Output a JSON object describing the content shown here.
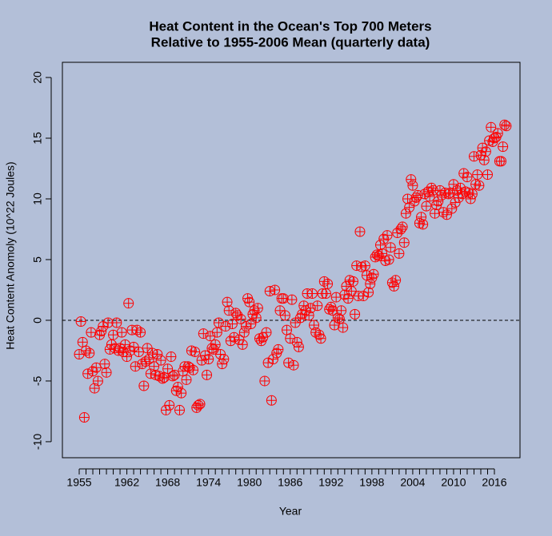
{
  "chart_data": {
    "type": "scatter",
    "title": "Heat Content in the Ocean's Top 700 Meters",
    "subtitle": "Relative to 1955-2006 Mean (quarterly data)",
    "x_label": "Year",
    "y_label": "Heat Content Anomoly (10^22 Joules)",
    "xlim": [
      1952.53,
      2019.76
    ],
    "ylim": [
      -11.32,
      21.25
    ],
    "xticks": [
      1955,
      1962,
      1968,
      1974,
      1980,
      1986,
      1992,
      1998,
      2004,
      2010,
      2016
    ],
    "xminor_ticks": [
      1956,
      1957,
      1958,
      1959,
      1960,
      1961,
      1963,
      1964,
      1965,
      1966,
      1967,
      1969,
      1970,
      1971,
      1972,
      1973,
      1975,
      1976,
      1977,
      1978,
      1979,
      1981,
      1982,
      1983,
      1984,
      1985,
      1987,
      1988,
      1989,
      1990,
      1991,
      1993,
      1994,
      1995,
      1996,
      1997,
      1999,
      2000,
      2001,
      2002,
      2003,
      2005,
      2006,
      2007,
      2008,
      2009,
      2011,
      2012,
      2013,
      2014,
      2015
    ],
    "yticks": [
      -10,
      -5,
      0,
      5,
      10,
      15,
      20
    ],
    "hline": 0,
    "background": "#b3bfd8",
    "series": [
      {
        "color": "#ff0000",
        "x": [
          1955,
          1955.25,
          1955.5,
          1955.75,
          1956,
          1956.25,
          1956.5,
          1956.75,
          1957,
          1957.25,
          1957.5,
          1957.75,
          1958,
          1958.25,
          1958.5,
          1958.75,
          1959,
          1959.25,
          1959.5,
          1959.75,
          1960,
          1960.25,
          1960.5,
          1960.75,
          1961,
          1961.25,
          1961.5,
          1961.75,
          1962,
          1962.25,
          1962.5,
          1962.75,
          1963,
          1963.25,
          1963.5,
          1963.75,
          1964,
          1964.25,
          1964.5,
          1964.75,
          1965,
          1965.25,
          1965.5,
          1965.75,
          1966,
          1966.25,
          1966.5,
          1966.75,
          1967,
          1967.25,
          1967.5,
          1967.75,
          1968,
          1968.25,
          1968.5,
          1968.75,
          1969,
          1969.25,
          1969.5,
          1969.75,
          1970,
          1970.25,
          1970.5,
          1970.75,
          1971,
          1971.25,
          1971.5,
          1971.75,
          1972,
          1972.25,
          1972.5,
          1972.75,
          1973,
          1973.25,
          1973.5,
          1973.75,
          1974,
          1974.25,
          1974.5,
          1974.75,
          1975,
          1975.25,
          1975.5,
          1975.75,
          1976,
          1976.25,
          1976.5,
          1976.75,
          1977,
          1977.25,
          1977.5,
          1977.75,
          1978,
          1978.25,
          1978.5,
          1978.75,
          1979,
          1979.25,
          1979.5,
          1979.75,
          1980,
          1980.25,
          1980.5,
          1980.75,
          1981,
          1981.25,
          1981.5,
          1981.75,
          1982,
          1982.25,
          1982.5,
          1982.75,
          1983,
          1983.25,
          1983.5,
          1983.75,
          1984,
          1984.25,
          1984.5,
          1984.75,
          1985,
          1985.25,
          1985.5,
          1985.75,
          1986,
          1986.25,
          1986.5,
          1986.75,
          1987,
          1987.25,
          1987.5,
          1987.75,
          1988,
          1988.25,
          1988.5,
          1988.75,
          1989,
          1989.25,
          1989.5,
          1989.75,
          1990,
          1990.25,
          1990.5,
          1990.75,
          1991,
          1991.25,
          1991.5,
          1991.75,
          1992,
          1992.25,
          1992.5,
          1992.75,
          1993,
          1993.25,
          1993.5,
          1993.75,
          1994,
          1994.25,
          1994.5,
          1994.75,
          1995,
          1995.25,
          1995.5,
          1995.75,
          1996,
          1996.25,
          1996.5,
          1996.75,
          1997,
          1997.25,
          1997.5,
          1997.75,
          1998,
          1998.25,
          1998.5,
          1998.75,
          1999,
          1999.25,
          1999.5,
          1999.75,
          2000,
          2000.25,
          2000.5,
          2000.75,
          2001,
          2001.25,
          2001.5,
          2001.75,
          2002,
          2002.25,
          2002.5,
          2002.75,
          2003,
          2003.25,
          2003.5,
          2003.75,
          2004,
          2004.25,
          2004.5,
          2004.75,
          2005,
          2005.25,
          2005.5,
          2005.75,
          2006,
          2006.25,
          2006.5,
          2006.75,
          2007,
          2007.25,
          2007.5,
          2007.75,
          2008,
          2008.25,
          2008.5,
          2008.75,
          2009,
          2009.25,
          2009.5,
          2009.75,
          2010,
          2010.25,
          2010.5,
          2010.75,
          2011,
          2011.25,
          2011.5,
          2011.75,
          2012,
          2012.25,
          2012.5,
          2012.75,
          2013,
          2013.25,
          2013.5,
          2013.75,
          2014,
          2014.25,
          2014.5,
          2014.75,
          2015,
          2015.25,
          2015.5,
          2015.75,
          2016,
          2016.25,
          2016.5,
          2016.75,
          2017,
          2017.25,
          2017.5,
          2017.75
        ],
        "values": [
          -2.8,
          -0.1,
          -1.8,
          -8.0,
          -2.5,
          -4.4,
          -2.7,
          -1.0,
          -4.2,
          -5.6,
          -3.9,
          -5.0,
          -1.2,
          -0.9,
          -0.5,
          -3.6,
          -4.3,
          -0.2,
          -2.4,
          -2.0,
          -1.2,
          -2.3,
          -0.2,
          -2.5,
          -2.3,
          -1.0,
          -2.6,
          -2.0,
          -3.0,
          1.4,
          -2.5,
          -0.8,
          -2.2,
          -3.8,
          -0.8,
          -2.6,
          -1.0,
          -3.6,
          -5.4,
          -3.4,
          -2.3,
          -3.2,
          -4.4,
          -2.7,
          -3.8,
          -4.5,
          -2.8,
          -4.6,
          -3.3,
          -4.8,
          -4.7,
          -7.4,
          -4.0,
          -7.0,
          -3.0,
          -4.6,
          -4.5,
          -5.8,
          -5.5,
          -7.4,
          -6.0,
          -4.2,
          -3.8,
          -4.9,
          -3.8,
          -3.9,
          -2.5,
          -4.1,
          -2.6,
          -7.2,
          -7.0,
          -6.9,
          -3.3,
          -1.1,
          -2.9,
          -4.5,
          -3.2,
          -1.3,
          -2.3,
          -2.4,
          -2.0,
          -1.0,
          -0.2,
          -2.8,
          -3.6,
          -3.2,
          -0.5,
          1.5,
          0.8,
          -1.7,
          -0.3,
          -1.4,
          0.6,
          0.4,
          -1.6,
          0.1,
          -2.0,
          -1.0,
          -0.5,
          1.8,
          1.5,
          -0.3,
          0.5,
          0.8,
          0.2,
          1.0,
          -1.5,
          -1.7,
          -1.4,
          -5.0,
          -1.0,
          -3.5,
          2.4,
          -6.6,
          -3.2,
          2.5,
          -2.7,
          -2.4,
          0.8,
          1.8,
          1.8,
          0.4,
          -0.8,
          -3.5,
          -1.5,
          1.7,
          -3.7,
          -0.2,
          -1.8,
          -2.2,
          0.2,
          0.5,
          1.2,
          0.8,
          2.2,
          0.4,
          1.0,
          2.2,
          -0.4,
          -1.0,
          1.2,
          -1.2,
          -1.5,
          2.2,
          3.2,
          2.2,
          3.0,
          0.9,
          1.1,
          0.8,
          -0.4,
          1.9,
          0.2,
          0.1,
          0.8,
          -0.6,
          2.1,
          2.8,
          1.8,
          3.3,
          2.4,
          3.2,
          0.5,
          4.5,
          2.0,
          7.3,
          4.4,
          2.0,
          4.5,
          3.7,
          2.3,
          3.0,
          3.5,
          3.8,
          5.2,
          5.4,
          5.3,
          6.2,
          5.5,
          6.7,
          4.9,
          7.0,
          5.0,
          6.0,
          3.1,
          2.8,
          3.3,
          7.2,
          5.5,
          7.5,
          7.7,
          6.4,
          8.8,
          10.0,
          9.3,
          11.6,
          11.1,
          9.8,
          10.1,
          10.3,
          8.0,
          8.5,
          7.9,
          10.4,
          9.4,
          10.6,
          10.2,
          10.9,
          10.7,
          8.8,
          9.5,
          9.8,
          10.7,
          10.3,
          8.9,
          10.5,
          8.7,
          10.4,
          10.5,
          9.2,
          11.2,
          9.7,
          10.7,
          10.1,
          10.9,
          10.4,
          12.1,
          10.6,
          11.8,
          10.5,
          10.0,
          10.4,
          13.5,
          11.2,
          12.0,
          11.1,
          13.6,
          14.2,
          13.2,
          13.9,
          12.0,
          14.8,
          15.9,
          14.7,
          15.0,
          15.1,
          15.4,
          13.1,
          13.1,
          14.3,
          16.1,
          16.0
        ]
      }
    ]
  }
}
